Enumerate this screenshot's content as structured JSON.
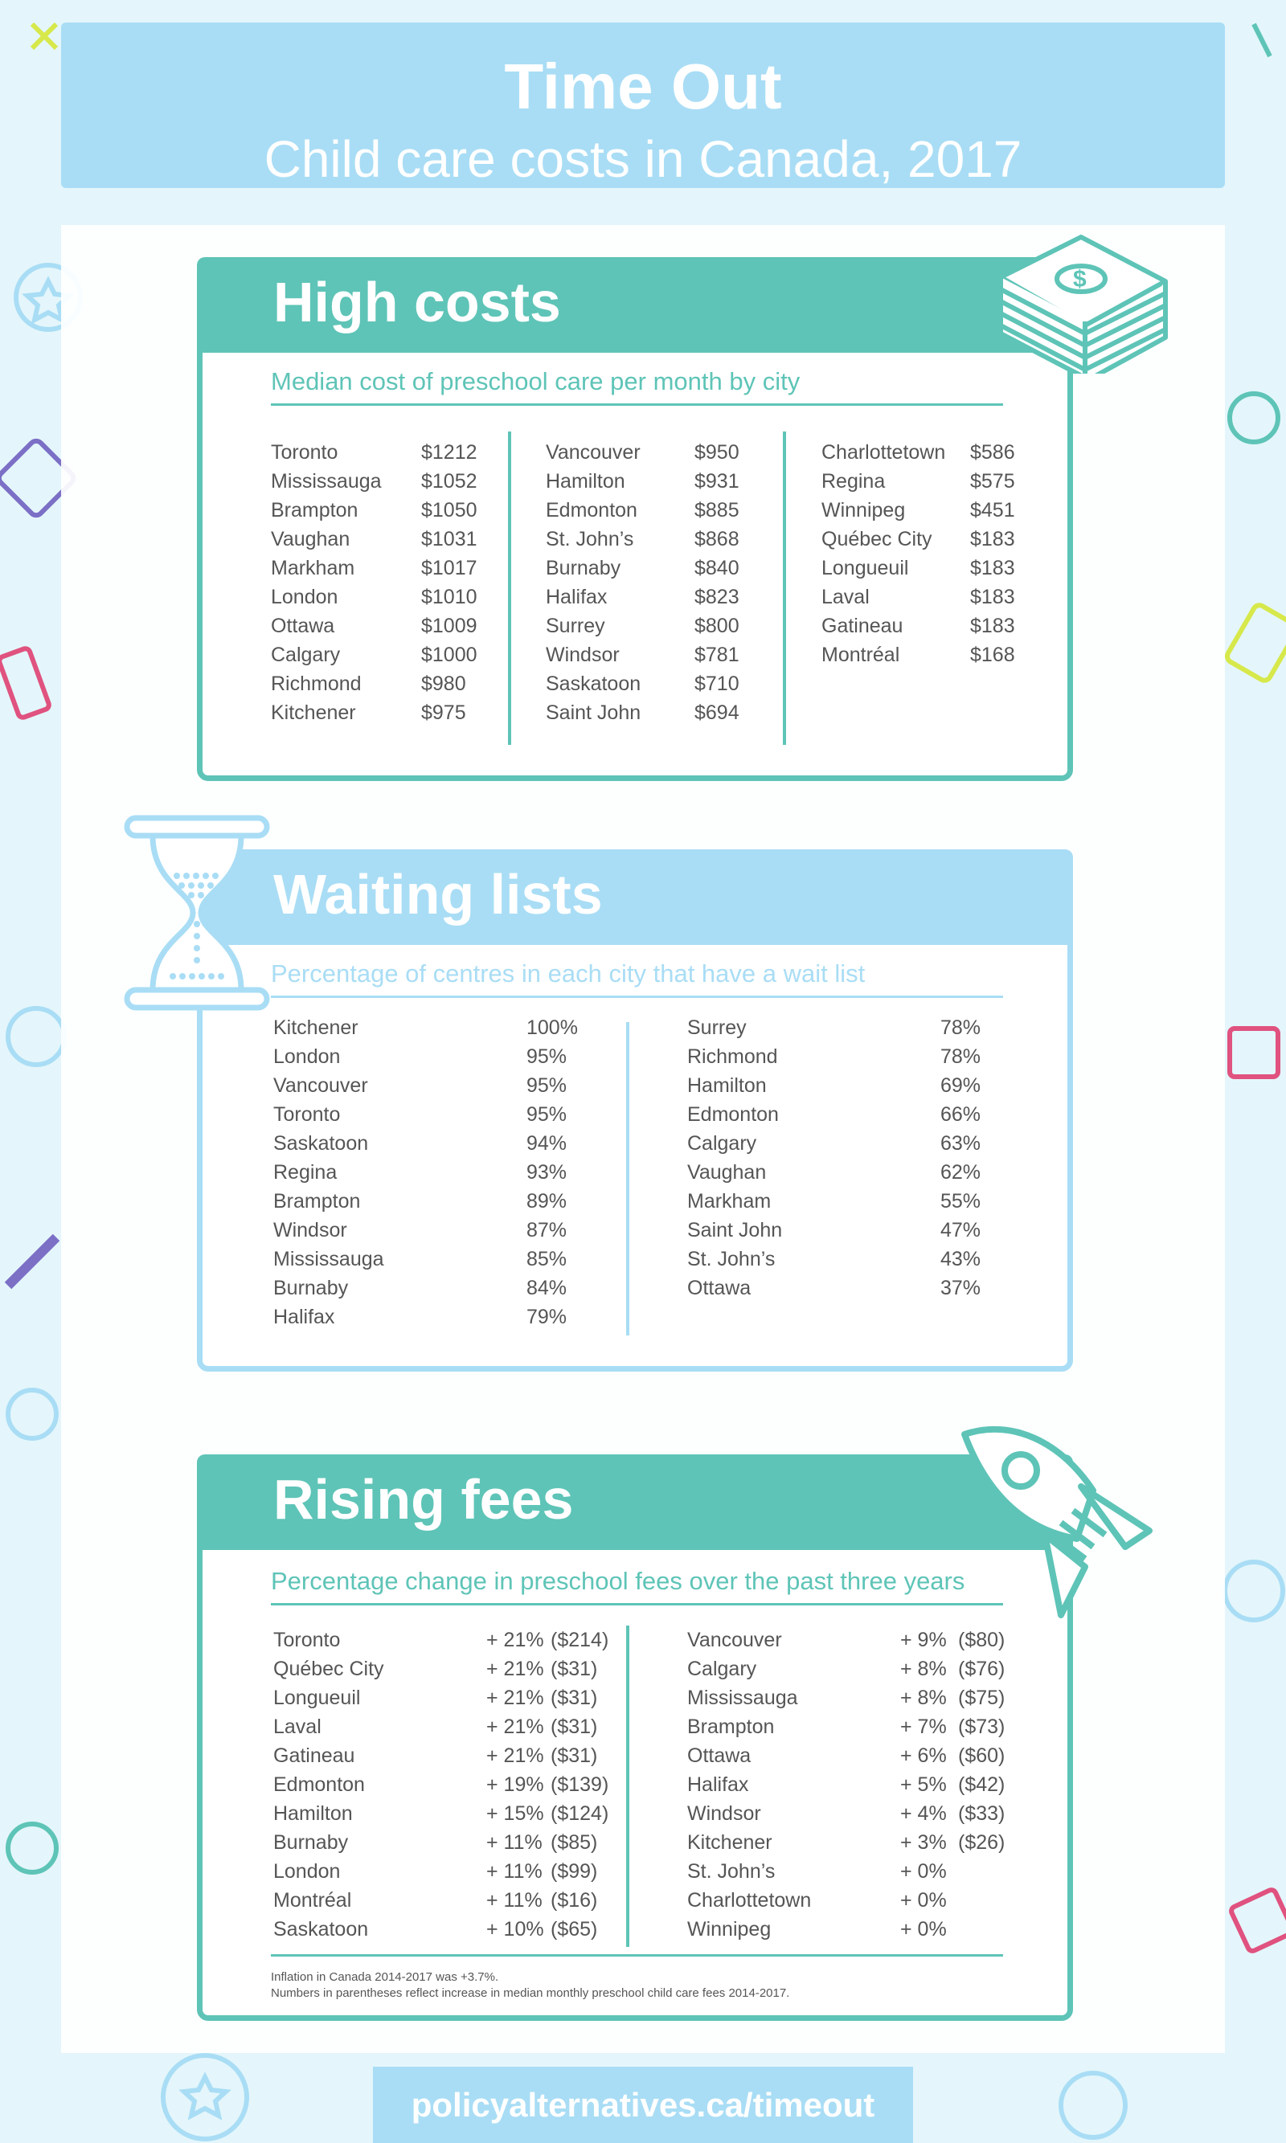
{
  "header": {
    "title": "Time Out",
    "subtitle": "Child care costs in Canada, 2017"
  },
  "colors": {
    "teal": "#5ec4b7",
    "light_blue": "#a9ddf5",
    "text": "#555555"
  },
  "high_costs": {
    "title": "High costs",
    "subtitle": "Median cost of preschool care per month by city",
    "icon": "money-stack-icon",
    "columns": [
      [
        {
          "city": "Toronto",
          "value": "$1212"
        },
        {
          "city": "Mississauga",
          "value": "$1052"
        },
        {
          "city": "Brampton",
          "value": "$1050"
        },
        {
          "city": "Vaughan",
          "value": "$1031"
        },
        {
          "city": "Markham",
          "value": "$1017"
        },
        {
          "city": "London",
          "value": "$1010"
        },
        {
          "city": "Ottawa",
          "value": "$1009"
        },
        {
          "city": "Calgary",
          "value": "$1000"
        },
        {
          "city": "Richmond",
          "value": "$980"
        },
        {
          "city": "Kitchener",
          "value": "$975"
        }
      ],
      [
        {
          "city": "Vancouver",
          "value": "$950"
        },
        {
          "city": "Hamilton",
          "value": "$931"
        },
        {
          "city": "Edmonton",
          "value": "$885"
        },
        {
          "city": "St. John’s",
          "value": "$868"
        },
        {
          "city": "Burnaby",
          "value": "$840"
        },
        {
          "city": "Halifax",
          "value": "$823"
        },
        {
          "city": "Surrey",
          "value": "$800"
        },
        {
          "city": "Windsor",
          "value": "$781"
        },
        {
          "city": "Saskatoon",
          "value": "$710"
        },
        {
          "city": "Saint John",
          "value": "$694"
        }
      ],
      [
        {
          "city": "Charlottetown",
          "value": "$586"
        },
        {
          "city": "Regina",
          "value": "$575"
        },
        {
          "city": "Winnipeg",
          "value": "$451"
        },
        {
          "city": "Québec City",
          "value": "$183"
        },
        {
          "city": "Longueuil",
          "value": "$183"
        },
        {
          "city": "Laval",
          "value": "$183"
        },
        {
          "city": "Gatineau",
          "value": "$183"
        },
        {
          "city": "Montréal",
          "value": "$168"
        }
      ]
    ]
  },
  "waiting_lists": {
    "title": "Waiting lists",
    "subtitle": "Percentage of centres in each city that have a wait list",
    "icon": "hourglass-icon",
    "columns": [
      [
        {
          "city": "Kitchener",
          "value": "100%"
        },
        {
          "city": "London",
          "value": "95%"
        },
        {
          "city": "Vancouver",
          "value": "95%"
        },
        {
          "city": "Toronto",
          "value": "95%"
        },
        {
          "city": "Saskatoon",
          "value": "94%"
        },
        {
          "city": "Regina",
          "value": "93%"
        },
        {
          "city": "Brampton",
          "value": "89%"
        },
        {
          "city": "Windsor",
          "value": "87%"
        },
        {
          "city": "Mississauga",
          "value": "85%"
        },
        {
          "city": "Burnaby",
          "value": "84%"
        },
        {
          "city": "Halifax",
          "value": "79%"
        }
      ],
      [
        {
          "city": "Surrey",
          "value": "78%"
        },
        {
          "city": "Richmond",
          "value": "78%"
        },
        {
          "city": "Hamilton",
          "value": "69%"
        },
        {
          "city": "Edmonton",
          "value": "66%"
        },
        {
          "city": "Calgary",
          "value": "63%"
        },
        {
          "city": "Vaughan",
          "value": "62%"
        },
        {
          "city": "Markham",
          "value": "55%"
        },
        {
          "city": "Saint John",
          "value": "47%"
        },
        {
          "city": "St. John’s",
          "value": "43%"
        },
        {
          "city": "Ottawa",
          "value": "37%"
        }
      ]
    ]
  },
  "rising_fees": {
    "title": "Rising fees",
    "subtitle": "Percentage change in preschool fees over the past three years",
    "icon": "rocket-icon",
    "columns": [
      [
        {
          "city": "Toronto",
          "pct": "+ 21%",
          "amt": "($214)"
        },
        {
          "city": "Québec City",
          "pct": "+ 21%",
          "amt": "($31)"
        },
        {
          "city": "Longueuil",
          "pct": "+ 21%",
          "amt": "($31)"
        },
        {
          "city": "Laval",
          "pct": "+ 21%",
          "amt": "($31)"
        },
        {
          "city": "Gatineau",
          "pct": "+ 21%",
          "amt": "($31)"
        },
        {
          "city": "Edmonton",
          "pct": "+ 19%",
          "amt": "($139)"
        },
        {
          "city": "Hamilton",
          "pct": "+ 15%",
          "amt": "($124)"
        },
        {
          "city": "Burnaby",
          "pct": "+ 11%",
          "amt": "($85)"
        },
        {
          "city": "London",
          "pct": "+ 11%",
          "amt": "($99)"
        },
        {
          "city": "Montréal",
          "pct": "+ 11%",
          "amt": "($16)"
        },
        {
          "city": "Saskatoon",
          "pct": "+ 10%",
          "amt": "($65)"
        }
      ],
      [
        {
          "city": "Vancouver",
          "pct": "+ 9%",
          "amt": "($80)"
        },
        {
          "city": "Calgary",
          "pct": "+ 8%",
          "amt": "($76)"
        },
        {
          "city": "Mississauga",
          "pct": "+ 8%",
          "amt": "($75)"
        },
        {
          "city": "Brampton",
          "pct": "+ 7%",
          "amt": "($73)"
        },
        {
          "city": "Ottawa",
          "pct": "+ 6%",
          "amt": "($60)"
        },
        {
          "city": "Halifax",
          "pct": "+ 5%",
          "amt": "($42)"
        },
        {
          "city": "Windsor",
          "pct": "+ 4%",
          "amt": "($33)"
        },
        {
          "city": "Kitchener",
          "pct": "+ 3%",
          "amt": "($26)"
        },
        {
          "city": "St. John’s",
          "pct": "+ 0%",
          "amt": ""
        },
        {
          "city": "Charlottetown",
          "pct": "+ 0%",
          "amt": ""
        },
        {
          "city": "Winnipeg",
          "pct": "+ 0%",
          "amt": ""
        }
      ]
    ],
    "footnotes": [
      "Inflation in Canada 2014-2017 was +3.7%.",
      "Numbers in parentheses reflect increase in median monthly preschool child care fees 2014-2017."
    ]
  },
  "footer": {
    "url": "policyalternatives.ca/timeout"
  }
}
